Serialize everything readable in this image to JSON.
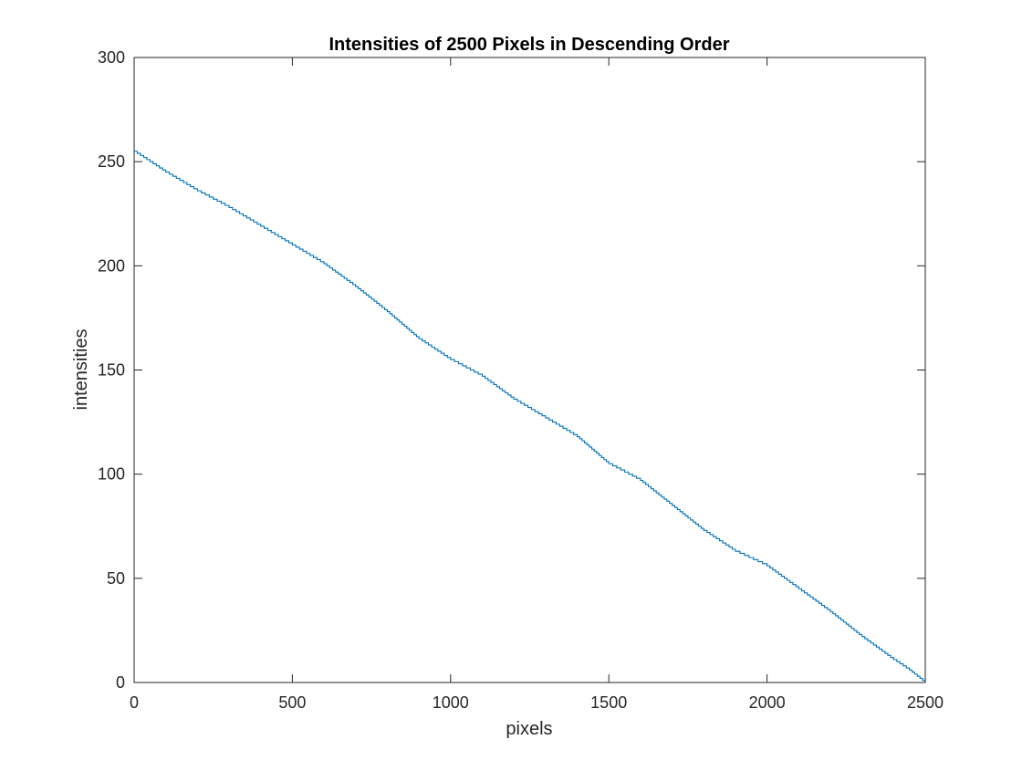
{
  "chart_data": {
    "type": "line",
    "title": "Intensities of 2500 Pixels in Descending Order",
    "xlabel": "pixels",
    "ylabel": "intensities",
    "xlim": [
      0,
      2500
    ],
    "ylim": [
      0,
      300
    ],
    "xticks": [
      0,
      500,
      1000,
      1500,
      2000,
      2500
    ],
    "yticks": [
      0,
      50,
      100,
      150,
      200,
      250,
      300
    ],
    "xtick_labels": [
      "0",
      "500",
      "1000",
      "1500",
      "2000",
      "2500"
    ],
    "ytick_labels": [
      "0",
      "50",
      "100",
      "150",
      "200",
      "250",
      "300"
    ],
    "grid": false,
    "series": [
      {
        "color": "#0072bd",
        "points": [
          [
            0,
            255
          ],
          [
            100,
            245
          ],
          [
            200,
            236
          ],
          [
            300,
            228
          ],
          [
            400,
            219
          ],
          [
            500,
            210
          ],
          [
            600,
            201
          ],
          [
            700,
            190
          ],
          [
            800,
            178
          ],
          [
            900,
            165
          ],
          [
            1000,
            155
          ],
          [
            1100,
            147
          ],
          [
            1200,
            136
          ],
          [
            1300,
            127
          ],
          [
            1400,
            118
          ],
          [
            1500,
            105
          ],
          [
            1600,
            97
          ],
          [
            1700,
            85
          ],
          [
            1800,
            73
          ],
          [
            1900,
            63
          ],
          [
            2000,
            56
          ],
          [
            2100,
            45
          ],
          [
            2200,
            34
          ],
          [
            2300,
            22
          ],
          [
            2400,
            11
          ],
          [
            2450,
            6
          ],
          [
            2500,
            0
          ]
        ]
      }
    ]
  }
}
